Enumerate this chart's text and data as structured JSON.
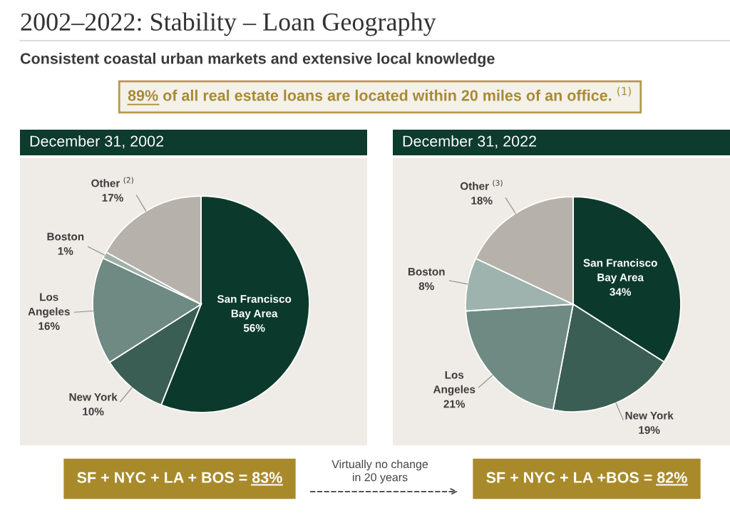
{
  "chart_data": [
    {
      "type": "other",
      "title": "2002–2022: Stability – Loan Geography",
      "subtitle": "Consistent coastal urban markets and extensive local knowledge",
      "annotations": [
        "89% of all real estate loans are located within 20 miles of an office. $^{(1)}$",
        "Virtually no change\nin 20 years"
      ]
    },
    {
      "type": "pie",
      "title": "December 31, 2002",
      "categories": [
        "San Francisco\nBay Area",
        "New York",
        "Los\nAngeles",
        "Boston",
        "Other $^{(2)}$"
      ],
      "values": [
        56,
        10,
        16,
        1,
        17
      ],
      "colors": [
        "#0b3a2c",
        "#3b5e54",
        "#6e8a82",
        "#9fb1ab",
        "#b6b2ab"
      ],
      "value_labels": [
        "56%",
        "10%",
        "16%",
        "1%",
        "17%"
      ],
      "annotations": [
        "SF + NYC + LA + BOS = 83%"
      ]
    },
    {
      "type": "pie",
      "title": "December 31, 2022",
      "categories": [
        "San Francisco\nBay Area",
        "New York",
        "Los\nAngeles",
        "Boston",
        "Other $^{(3)}$"
      ],
      "values": [
        34,
        19,
        21,
        8,
        18
      ],
      "colors": [
        "#0b3a2c",
        "#3b5e54",
        "#6e8a82",
        "#9fb3ae",
        "#b6b2ab"
      ],
      "value_labels": [
        "34%",
        "19%",
        "21%",
        "8%",
        "18%"
      ],
      "annotations": [
        "SF + NYC + LA +BOS = 82%"
      ]
    }
  ]
}
